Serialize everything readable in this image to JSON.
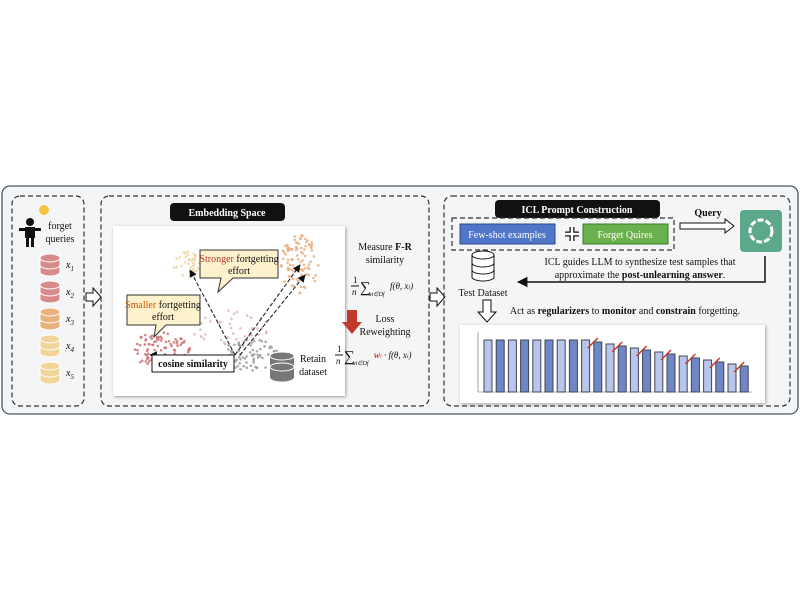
{
  "left": {
    "label": [
      "forget",
      "queries"
    ],
    "items": [
      "x",
      "x",
      "x",
      "x",
      "x"
    ],
    "subs": [
      "1",
      "2",
      "3",
      "4",
      "5"
    ]
  },
  "embedding": {
    "title": "Embedding Space",
    "stronger": [
      "Stronger",
      " fortgetting",
      "effort"
    ],
    "smaller": [
      "Smaller",
      " fortgetting",
      "effort"
    ],
    "cosine": "cosine similarity",
    "retain": [
      "Retain",
      "dataset"
    ],
    "measure": [
      "Measure ",
      "F-R",
      "similarity"
    ],
    "formula1": [
      "1",
      "n",
      "∑",
      "x",
      "i",
      "∈D",
      "f",
      "f(θ, x",
      "i",
      ")"
    ],
    "loss": [
      "Loss",
      "Reweighting"
    ],
    "formula2": [
      "1",
      "n",
      "∑",
      "x",
      "i",
      "∈D",
      "f",
      "w",
      "i",
      " · f(θ, x",
      "i",
      ")"
    ]
  },
  "icl": {
    "title": "ICL Prompt Construction",
    "fewshot": "Few-shot examples",
    "forget": "Forget Quires",
    "query": "Query",
    "guide": [
      "ICL guides LLM to synthesize test samples that",
      "approximate the ",
      "post-unlearning answer",
      "."
    ],
    "test": "Test Dataset",
    "act": [
      "Act as ",
      "regularizers",
      " to ",
      "monitor",
      " and ",
      "constrain",
      " forgetting."
    ]
  }
}
